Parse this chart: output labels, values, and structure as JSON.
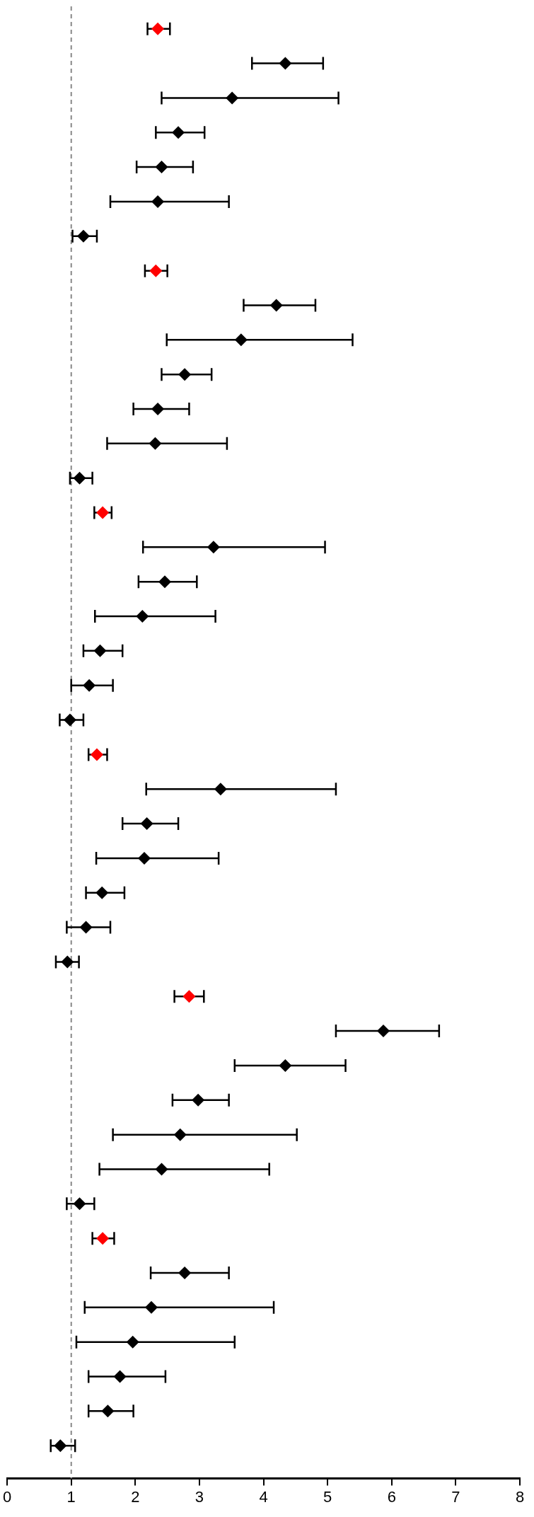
{
  "chart_data": {
    "type": "scatter",
    "orientation": "horizontal",
    "marker": "diamond",
    "tick_labels": "x",
    "grid": false,
    "categories": [
      null,
      null,
      null,
      null,
      null,
      null,
      null,
      null,
      null,
      null,
      null,
      null,
      null,
      null,
      null,
      null,
      null,
      null,
      null,
      null,
      null,
      null,
      null,
      null,
      null,
      null,
      null,
      null,
      null,
      null,
      null,
      null,
      null,
      null,
      null,
      null,
      null,
      null,
      null,
      null,
      null,
      null
    ],
    "values": [
      2.35,
      4.34,
      3.51,
      2.67,
      2.41,
      2.35,
      1.19,
      2.32,
      4.2,
      3.65,
      2.77,
      2.35,
      2.31,
      1.13,
      1.49,
      3.22,
      2.46,
      2.11,
      1.45,
      1.28,
      0.98,
      1.4,
      3.33,
      2.18,
      2.14,
      1.48,
      1.23,
      0.94,
      2.84,
      5.87,
      4.34,
      2.98,
      2.7,
      2.41,
      1.13,
      1.49,
      2.77,
      2.25,
      1.96,
      1.76,
      1.57,
      0.83
    ],
    "errors": [
      [
        2.19,
        2.54
      ],
      [
        3.82,
        4.93
      ],
      [
        2.41,
        5.17
      ],
      [
        2.32,
        3.08
      ],
      [
        2.02,
        2.9
      ],
      [
        1.61,
        3.46
      ],
      [
        1.02,
        1.4
      ],
      [
        2.15,
        2.5
      ],
      [
        3.69,
        4.81
      ],
      [
        2.49,
        5.39
      ],
      [
        2.41,
        3.19
      ],
      [
        1.97,
        2.84
      ],
      [
        1.56,
        3.43
      ],
      [
        0.98,
        1.33
      ],
      [
        1.36,
        1.63
      ],
      [
        2.12,
        4.96
      ],
      [
        2.05,
        2.96
      ],
      [
        1.37,
        3.25
      ],
      [
        1.19,
        1.8
      ],
      [
        1.0,
        1.65
      ],
      [
        0.82,
        1.19
      ],
      [
        1.27,
        1.56
      ],
      [
        2.17,
        5.13
      ],
      [
        1.8,
        2.67
      ],
      [
        1.39,
        3.3
      ],
      [
        1.23,
        1.83
      ],
      [
        0.93,
        1.61
      ],
      [
        0.76,
        1.12
      ],
      [
        2.61,
        3.07
      ],
      [
        5.13,
        6.74
      ],
      [
        3.55,
        5.28
      ],
      [
        2.58,
        3.46
      ],
      [
        1.65,
        4.52
      ],
      [
        1.44,
        4.09
      ],
      [
        0.93,
        1.36
      ],
      [
        1.33,
        1.67
      ],
      [
        2.24,
        3.46
      ],
      [
        1.21,
        4.16
      ],
      [
        1.08,
        3.55
      ],
      [
        1.27,
        2.47
      ],
      [
        1.27,
        1.97
      ],
      [
        0.68,
        1.06
      ]
    ],
    "colors": [
      "#ff0000",
      "#000000",
      "#000000",
      "#000000",
      "#000000",
      "#000000",
      "#000000",
      "#ff0000",
      "#000000",
      "#000000",
      "#000000",
      "#000000",
      "#000000",
      "#000000",
      "#ff0000",
      "#000000",
      "#000000",
      "#000000",
      "#000000",
      "#000000",
      "#000000",
      "#ff0000",
      "#000000",
      "#000000",
      "#000000",
      "#000000",
      "#000000",
      "#000000",
      "#ff0000",
      "#000000",
      "#000000",
      "#000000",
      "#000000",
      "#000000",
      "#000000",
      "#ff0000",
      "#000000",
      "#000000",
      "#000000",
      "#000000",
      "#000000",
      "#000000"
    ],
    "xlim": [
      0,
      8
    ],
    "xticks": [
      0,
      1,
      2,
      3,
      4,
      5,
      6,
      7,
      8
    ],
    "ref_lines": [
      {
        "axis": "x",
        "value": 1,
        "color": "#888888",
        "line_style": "dashed"
      }
    ]
  }
}
